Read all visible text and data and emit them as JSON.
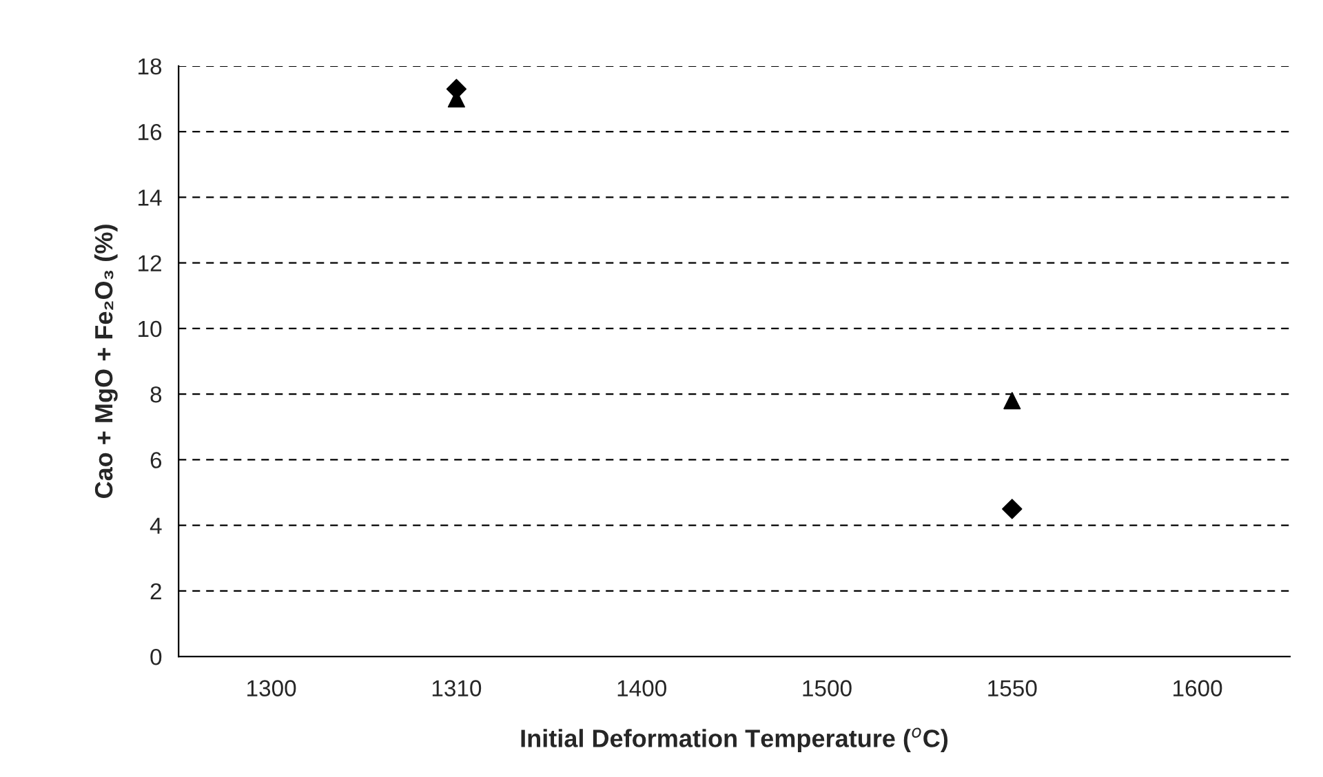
{
  "chart_data": {
    "type": "scatter",
    "xlabel": "Initial Deformation Temperature ($^{o}$C)",
    "ylabel": "Cao + MgO + Fe₂O₃ (%)",
    "categories": [
      "1300",
      "1310",
      "1400",
      "1500",
      "1550",
      "1600"
    ],
    "series": [
      {
        "color": "#000000",
        "marker": "diamond",
        "values": [
          null,
          17.3,
          null,
          null,
          4.5,
          null
        ]
      },
      {
        "color": "#000000",
        "marker": "triangle",
        "values": [
          null,
          17.0,
          null,
          null,
          7.8,
          null
        ]
      }
    ],
    "ylim": [
      0,
      18
    ],
    "yticks": [
      0,
      2,
      4,
      6,
      8,
      10,
      12,
      14,
      16,
      18
    ],
    "grid": "y",
    "legend": false
  }
}
